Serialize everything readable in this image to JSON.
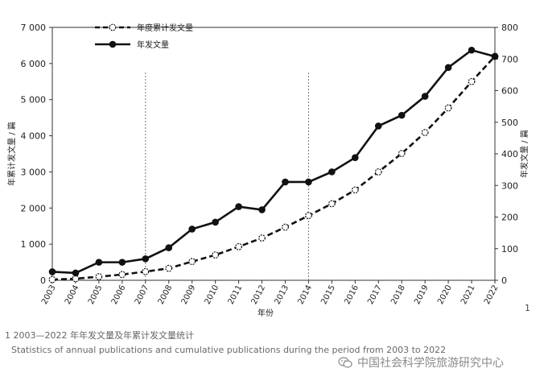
{
  "chart_data": {
    "type": "line",
    "title": "",
    "xlabel": "年份",
    "ylabel_left": "年累计发文量 / 篇",
    "ylabel_right": "年发文量 / 篇",
    "categories": [
      "2003",
      "2004",
      "2005",
      "2006",
      "2007",
      "2008",
      "2009",
      "2010",
      "2011",
      "2012",
      "2013",
      "2014",
      "2015",
      "2016",
      "2017",
      "2018",
      "2019",
      "2020",
      "2021",
      "2022"
    ],
    "ylim_left": [
      0,
      7000
    ],
    "ylim_right": [
      0,
      800
    ],
    "yticks_left": [
      0,
      1000,
      2000,
      3000,
      4000,
      5000,
      6000,
      7000
    ],
    "yticks_left_labels": [
      "0",
      "1 000",
      "2 000",
      "3 000",
      "4 000",
      "5 000",
      "6 000",
      "7 000"
    ],
    "yticks_right": [
      0,
      100,
      200,
      300,
      400,
      500,
      600,
      700,
      800
    ],
    "yticks_right_labels": [
      "0",
      "100",
      "200",
      "300",
      "400",
      "500",
      "600",
      "700",
      "800"
    ],
    "vlines": [
      "2007",
      "2014"
    ],
    "legend_position": "top-left",
    "grid": false,
    "series": [
      {
        "name": "年度累计发文量",
        "axis": "left",
        "style": "dashed",
        "marker": "open-circle",
        "values": [
          20,
          45,
          100,
          160,
          240,
          330,
          520,
          700,
          930,
          1170,
          1470,
          1790,
          2120,
          2500,
          3000,
          3510,
          4090,
          4770,
          5500,
          6200
        ]
      },
      {
        "name": "年发文量",
        "axis": "right",
        "style": "solid",
        "marker": "filled-circle",
        "values": [
          27,
          23,
          57,
          57,
          68,
          103,
          162,
          184,
          233,
          223,
          311,
          311,
          343,
          388,
          488,
          522,
          582,
          673,
          728,
          708
        ]
      }
    ]
  },
  "caption": {
    "zh": "1 2003—2022 年年发文量及年累计发文量统计",
    "en": "Statistics of annual publications and cumulative publications during the period from 2003 to 2022"
  },
  "page_mark": "1",
  "watermark": {
    "text": "中国社会科学院旅游研究中心",
    "icon": "wechat-icon"
  },
  "colors": {
    "line": "#111111",
    "axis": "#333333",
    "vline": "#777777",
    "caption": "#666666"
  }
}
